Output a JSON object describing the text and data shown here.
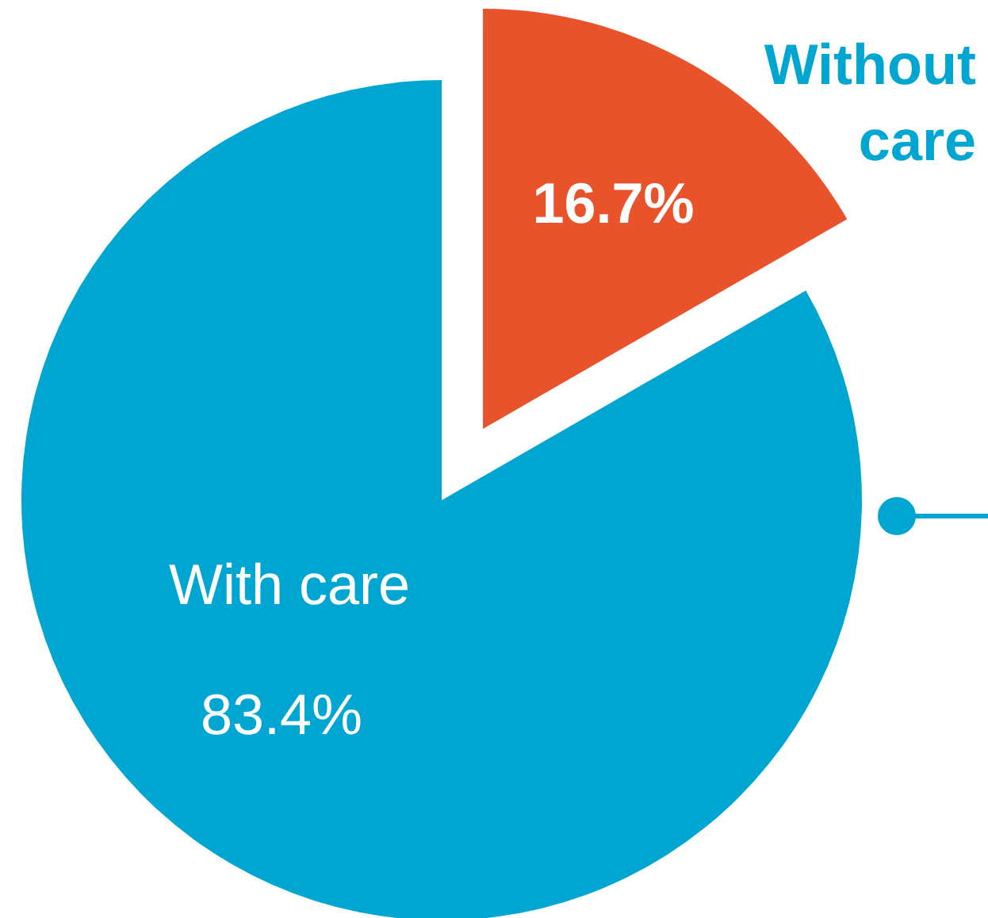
{
  "chart_data": {
    "type": "pie",
    "categories": [
      "Without care",
      "With care"
    ],
    "values": [
      16.7,
      83.4
    ],
    "colors": [
      "#e8532b",
      "#00a6d2"
    ],
    "value_labels": [
      "16.7%",
      "83.4%"
    ]
  }
}
